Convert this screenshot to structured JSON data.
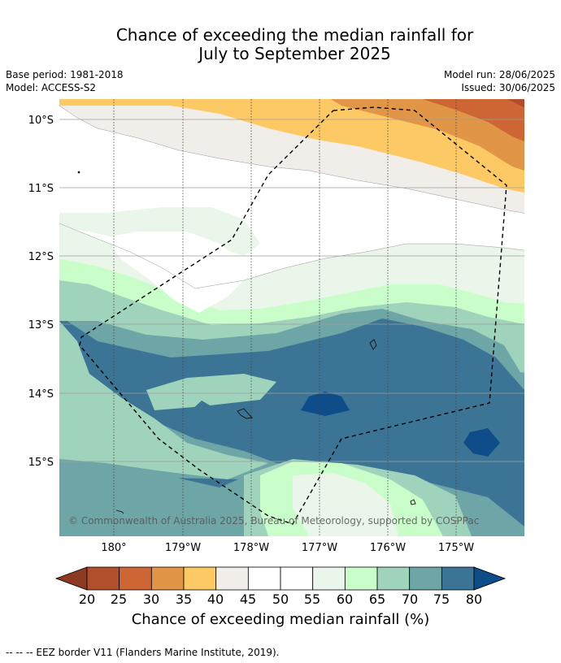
{
  "title": {
    "line1": "Chance of exceeding the median rainfall for",
    "line2": "July to September 2025"
  },
  "meta": {
    "base_period": "Base period: 1981-2018",
    "model": "Model: ACCESS-S2",
    "model_run": "Model run: 28/06/2025",
    "issued": "Issued: 30/06/2025"
  },
  "map": {
    "lat_labels": [
      "10°S",
      "11°S",
      "12°S",
      "13°S",
      "14°S",
      "15°S"
    ],
    "lon_labels": [
      "180°",
      "179°W",
      "178°W",
      "177°W",
      "176°W",
      "175°W"
    ],
    "credit": "© Commonwealth of Australia 2025, Bureau of Meteorology, supported by COSPPac",
    "eez_border": "dashed"
  },
  "colorbar": {
    "ticks": [
      "20",
      "25",
      "30",
      "35",
      "40",
      "45",
      "50",
      "55",
      "60",
      "65",
      "70",
      "75",
      "80"
    ],
    "colors": [
      "#8c3a22",
      "#b14f2c",
      "#cd6634",
      "#e19546",
      "#fdc965",
      "#f1ede8",
      "#ffffff",
      "#ffffff",
      "#eaf6e9",
      "#c9fdca",
      "#9fd3bb",
      "#6ea6a7",
      "#3c7496",
      "#0e4c8a"
    ],
    "label": "Chance of exceeding median rainfall (%)"
  },
  "footer": "--  --  -- EEZ border V11 (Flanders Marine Institute, 2019)."
}
